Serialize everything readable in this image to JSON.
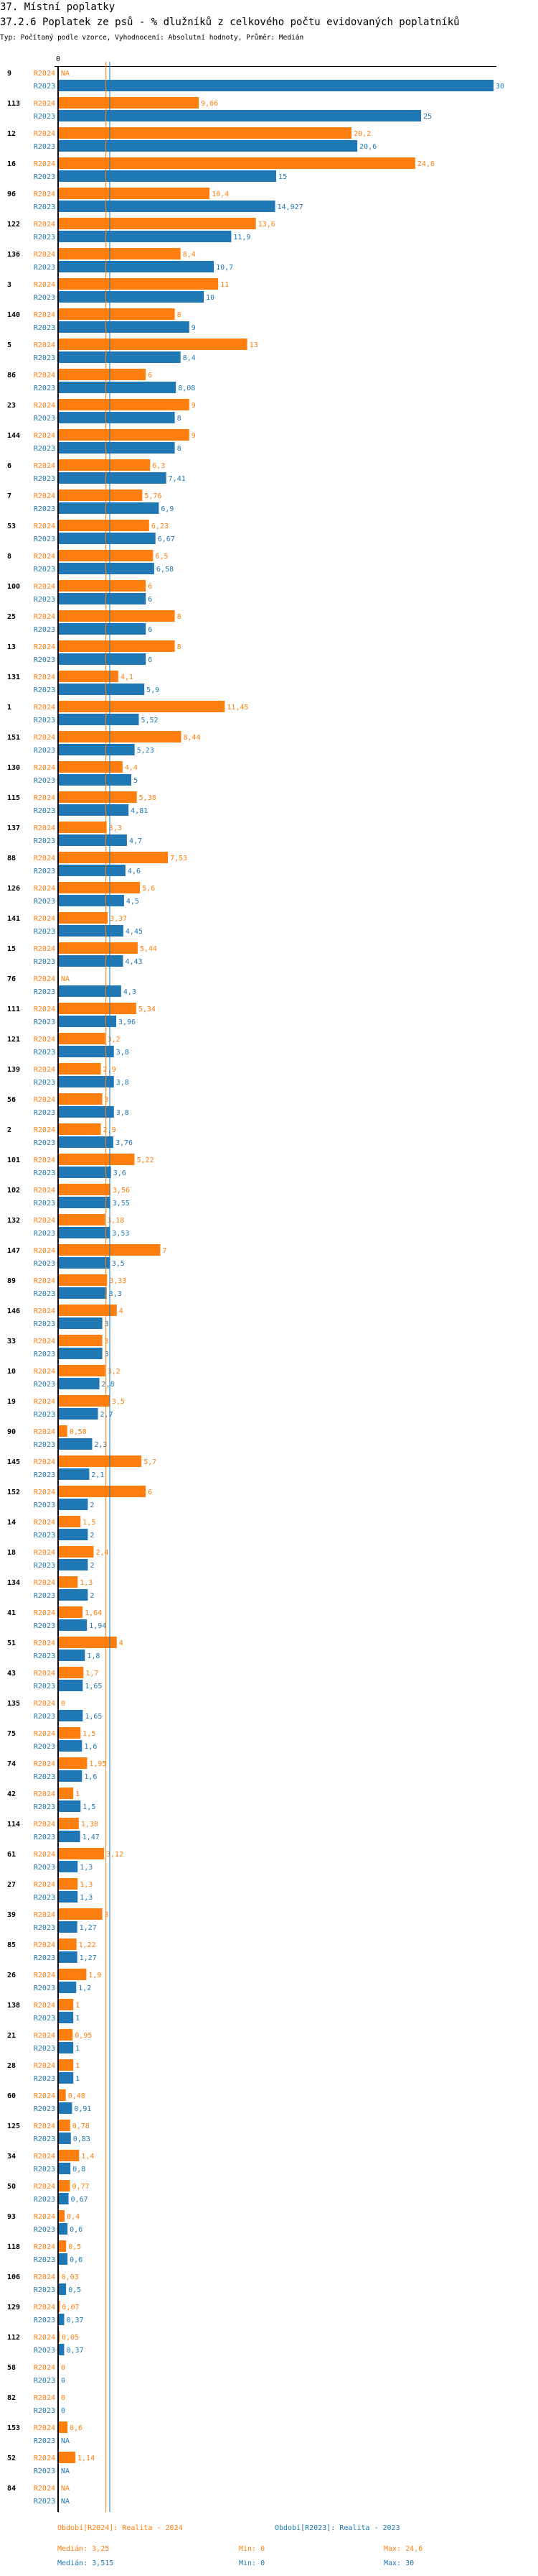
{
  "header": {
    "section": "37. Místní poplatky",
    "title": "37.2.6 Poplatek ze psů - % dlužníků z celkového počtu evidovaných poplatníků",
    "subtitle": "Typ: Počítaný podle vzorce, Vyhodnocení: Absolutní hodnoty, Průměr: Medián"
  },
  "colors": {
    "R2024": "#ff7f0e",
    "R2023": "#1f77b4",
    "axis": "#000000"
  },
  "chart_data": {
    "type": "bar",
    "orientation": "horizontal",
    "xlim": [
      0,
      30
    ],
    "x_tick_labels": [
      "0"
    ],
    "grid": false,
    "na_label": "NA",
    "categories": [
      "9",
      "113",
      "12",
      "16",
      "96",
      "122",
      "136",
      "3",
      "140",
      "5",
      "86",
      "23",
      "144",
      "6",
      "7",
      "53",
      "8",
      "100",
      "25",
      "13",
      "131",
      "1",
      "151",
      "130",
      "115",
      "137",
      "88",
      "126",
      "141",
      "15",
      "76",
      "111",
      "121",
      "139",
      "56",
      "2",
      "101",
      "102",
      "132",
      "147",
      "89",
      "146",
      "33",
      "10",
      "19",
      "90",
      "145",
      "152",
      "14",
      "18",
      "134",
      "41",
      "51",
      "43",
      "135",
      "75",
      "74",
      "42",
      "114",
      "61",
      "27",
      "39",
      "85",
      "26",
      "138",
      "21",
      "28",
      "60",
      "125",
      "34",
      "50",
      "93",
      "118",
      "106",
      "129",
      "112",
      "58",
      "82",
      "153",
      "52",
      "84"
    ],
    "series": [
      {
        "name": "R2024",
        "color": "#ff7f0e",
        "values": [
          null,
          9.66,
          20.2,
          24.6,
          10.4,
          13.6,
          8.4,
          11,
          8,
          13,
          6,
          9,
          9,
          6.3,
          5.76,
          6.23,
          6.5,
          6,
          8,
          8,
          4.1,
          11.45,
          8.44,
          4.4,
          5.38,
          3.3,
          7.53,
          5.6,
          3.37,
          5.44,
          null,
          5.34,
          3.2,
          2.9,
          3,
          2.9,
          5.22,
          3.56,
          3.18,
          7,
          3.33,
          4,
          3,
          3.2,
          3.5,
          0.58,
          5.7,
          6,
          1.5,
          2.4,
          1.3,
          1.64,
          4,
          1.7,
          0,
          1.5,
          1.95,
          1,
          1.38,
          3.12,
          1.3,
          3,
          1.22,
          1.9,
          1,
          0.95,
          1,
          0.48,
          0.78,
          1.4,
          0.77,
          0.4,
          0.5,
          0.03,
          0.07,
          0.05,
          0,
          0,
          0.6,
          1.14,
          null
        ]
      },
      {
        "name": "R2023",
        "color": "#1f77b4",
        "values": [
          30,
          25,
          20.6,
          15,
          14.927,
          11.9,
          10.7,
          10,
          9,
          8.4,
          8.08,
          8,
          8,
          7.41,
          6.9,
          6.67,
          6.58,
          6,
          6,
          6,
          5.9,
          5.52,
          5.23,
          5,
          4.81,
          4.7,
          4.6,
          4.5,
          4.45,
          4.43,
          4.3,
          3.96,
          3.8,
          3.8,
          3.8,
          3.76,
          3.6,
          3.55,
          3.53,
          3.5,
          3.3,
          3,
          3,
          2.8,
          2.7,
          2.3,
          2.1,
          2,
          2,
          2,
          2,
          1.94,
          1.8,
          1.65,
          1.65,
          1.6,
          1.6,
          1.5,
          1.47,
          1.3,
          1.3,
          1.27,
          1.27,
          1.2,
          1,
          1,
          1,
          0.91,
          0.83,
          0.8,
          0.67,
          0.6,
          0.6,
          0.5,
          0.37,
          0.37,
          0,
          0,
          null,
          null,
          null
        ]
      }
    ],
    "median_lines": {
      "R2024": 3.25,
      "R2023": 3.515
    },
    "legend": {
      "r2024": "Období[R2024]: Realita - 2024",
      "r2023": "Období[R2023]: Realita - 2023"
    },
    "stats": {
      "r2024": {
        "median": "Medián: 3,25",
        "min": "Min: 0",
        "max": "Max: 24,6"
      },
      "r2023": {
        "median": "Medián: 3,515",
        "min": "Min: 0",
        "max": "Max: 30"
      }
    }
  }
}
